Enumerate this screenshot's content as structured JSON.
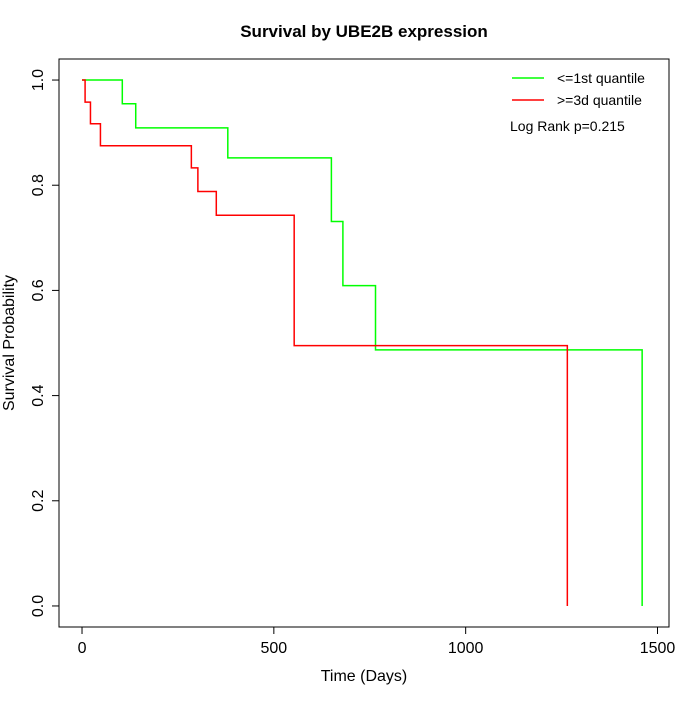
{
  "chart_data": {
    "type": "line",
    "title": "Survival by UBE2B expression",
    "xlabel": "Time (Days)",
    "ylabel": "Survival Probability",
    "xlim": [
      -60,
      1530
    ],
    "ylim": [
      -0.04,
      1.04
    ],
    "x_ticks": [
      0,
      500,
      1000,
      1500
    ],
    "y_ticks": [
      0.0,
      0.2,
      0.4,
      0.6,
      0.8,
      1.0
    ],
    "x_tick_labels": [
      "0",
      "500",
      "1000",
      "1500"
    ],
    "y_tick_labels": [
      "0.0",
      "0.2",
      "0.4",
      "0.6",
      "0.8",
      "1.0"
    ],
    "grid": false,
    "legend_position": "top-right",
    "annotation": "Log Rank p=0.215",
    "series": [
      {
        "name": "<=1st quantile",
        "color": "#00ff00",
        "step": true,
        "x": [
          0,
          105,
          140,
          380,
          650,
          680,
          765,
          1460,
          1460
        ],
        "y": [
          1.0,
          0.955,
          0.909,
          0.852,
          0.731,
          0.609,
          0.487,
          0.487,
          0.0
        ]
      },
      {
        "name": ">=3d quantile",
        "color": "#ff0000",
        "step": true,
        "x": [
          0,
          8,
          22,
          48,
          285,
          302,
          350,
          553,
          1265,
          1265
        ],
        "y": [
          1.0,
          0.958,
          0.917,
          0.875,
          0.833,
          0.788,
          0.743,
          0.495,
          0.495,
          0.0
        ]
      }
    ]
  }
}
